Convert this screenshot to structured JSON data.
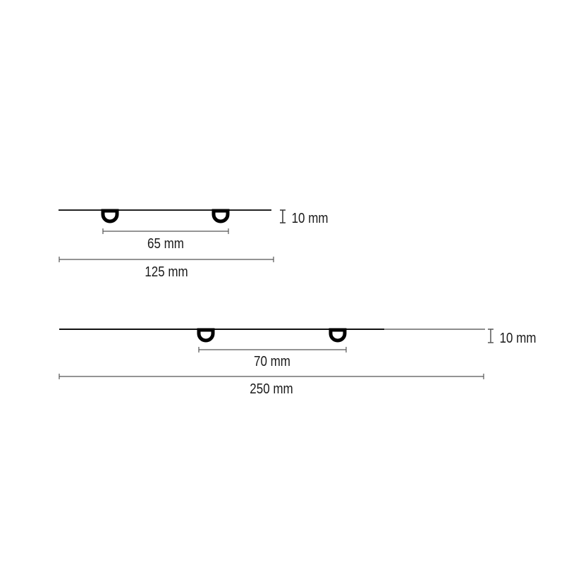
{
  "diagrams": [
    {
      "height_label": "10 mm",
      "spacing_label": "65 mm",
      "length_label": "125 mm"
    },
    {
      "height_label": "10 mm",
      "spacing_label": "70 mm",
      "length_label": "250 mm"
    }
  ],
  "colors": {
    "outline": "#000000",
    "dimension": "#555555"
  }
}
